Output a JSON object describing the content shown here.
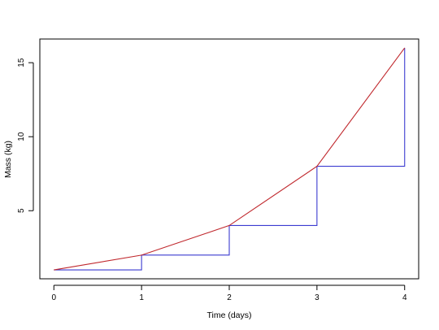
{
  "chart_data": {
    "type": "line",
    "title": "",
    "xlabel": "Time (days)",
    "ylabel": "Mass (kg)",
    "xlim": [
      -0.16,
      4.16
    ],
    "ylim": [
      0.4,
      16.6
    ],
    "x_ticks": [
      0,
      1,
      2,
      3,
      4
    ],
    "y_ticks": [
      5,
      10,
      15
    ],
    "grid": false,
    "legend": "none",
    "series": [
      {
        "style": "step",
        "color": "#3b3bd0",
        "x": [
          0,
          1,
          2,
          3,
          4
        ],
        "y": [
          1,
          2,
          4,
          8,
          16
        ]
      },
      {
        "style": "line",
        "color": "#c0282d",
        "x": [
          0,
          1,
          2,
          3,
          4
        ],
        "y": [
          1,
          2,
          4,
          8,
          16
        ]
      }
    ]
  }
}
